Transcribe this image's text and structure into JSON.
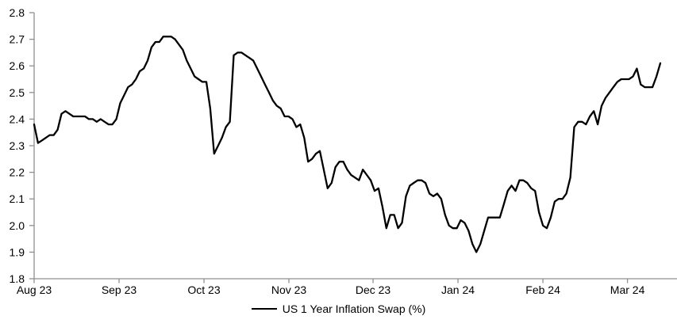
{
  "chart_data": {
    "type": "line",
    "title": "",
    "legend": "US 1 Year Inflation Swap (%)",
    "legend_position": "bottom-center",
    "grid": false,
    "y_axis": {
      "min": 1.8,
      "max": 2.8,
      "step": 0.1,
      "tick_format": "0.0"
    },
    "x_ticks": [
      {
        "label": "Aug 23",
        "index": 0
      },
      {
        "label": "Sep 23",
        "index": 21.7
      },
      {
        "label": "Oct 23",
        "index": 43.4
      },
      {
        "label": "Nov 23",
        "index": 65.1
      },
      {
        "label": "Dec 23",
        "index": 86.6
      },
      {
        "label": "Jan 24",
        "index": 108.3
      },
      {
        "label": "Feb 24",
        "index": 130
      },
      {
        "label": "Mar 24",
        "index": 151.6
      }
    ],
    "series": [
      {
        "name": "US 1 Year Inflation Swap (%)",
        "values": [
          2.38,
          2.31,
          2.32,
          2.33,
          2.34,
          2.34,
          2.36,
          2.42,
          2.43,
          2.42,
          2.41,
          2.41,
          2.41,
          2.41,
          2.4,
          2.4,
          2.39,
          2.4,
          2.39,
          2.38,
          2.38,
          2.4,
          2.46,
          2.49,
          2.52,
          2.53,
          2.55,
          2.58,
          2.59,
          2.62,
          2.67,
          2.69,
          2.69,
          2.71,
          2.71,
          2.71,
          2.7,
          2.68,
          2.66,
          2.62,
          2.59,
          2.56,
          2.55,
          2.54,
          2.54,
          2.44,
          2.27,
          2.3,
          2.33,
          2.37,
          2.39,
          2.64,
          2.65,
          2.65,
          2.64,
          2.63,
          2.62,
          2.59,
          2.56,
          2.53,
          2.5,
          2.47,
          2.45,
          2.44,
          2.41,
          2.41,
          2.4,
          2.37,
          2.38,
          2.33,
          2.24,
          2.25,
          2.27,
          2.28,
          2.21,
          2.14,
          2.16,
          2.22,
          2.24,
          2.24,
          2.21,
          2.19,
          2.18,
          2.17,
          2.21,
          2.19,
          2.17,
          2.13,
          2.14,
          2.07,
          1.99,
          2.04,
          2.04,
          1.99,
          2.01,
          2.11,
          2.15,
          2.16,
          2.17,
          2.17,
          2.16,
          2.12,
          2.11,
          2.12,
          2.1,
          2.04,
          2.0,
          1.99,
          1.99,
          2.02,
          2.01,
          1.98,
          1.93,
          1.9,
          1.93,
          1.98,
          2.03,
          2.03,
          2.03,
          2.03,
          2.08,
          2.13,
          2.15,
          2.13,
          2.17,
          2.17,
          2.16,
          2.14,
          2.13,
          2.05,
          2.0,
          1.99,
          2.03,
          2.09,
          2.1,
          2.1,
          2.12,
          2.18,
          2.37,
          2.39,
          2.39,
          2.38,
          2.41,
          2.43,
          2.38,
          2.45,
          2.48,
          2.5,
          2.52,
          2.54,
          2.55,
          2.55,
          2.55,
          2.56,
          2.59,
          2.53,
          2.52,
          2.52,
          2.52,
          2.56,
          2.61
        ]
      }
    ],
    "colors": {
      "line": "#000000",
      "axis": "#8f8f8f",
      "text": "#000000",
      "background": "#ffffff"
    }
  }
}
